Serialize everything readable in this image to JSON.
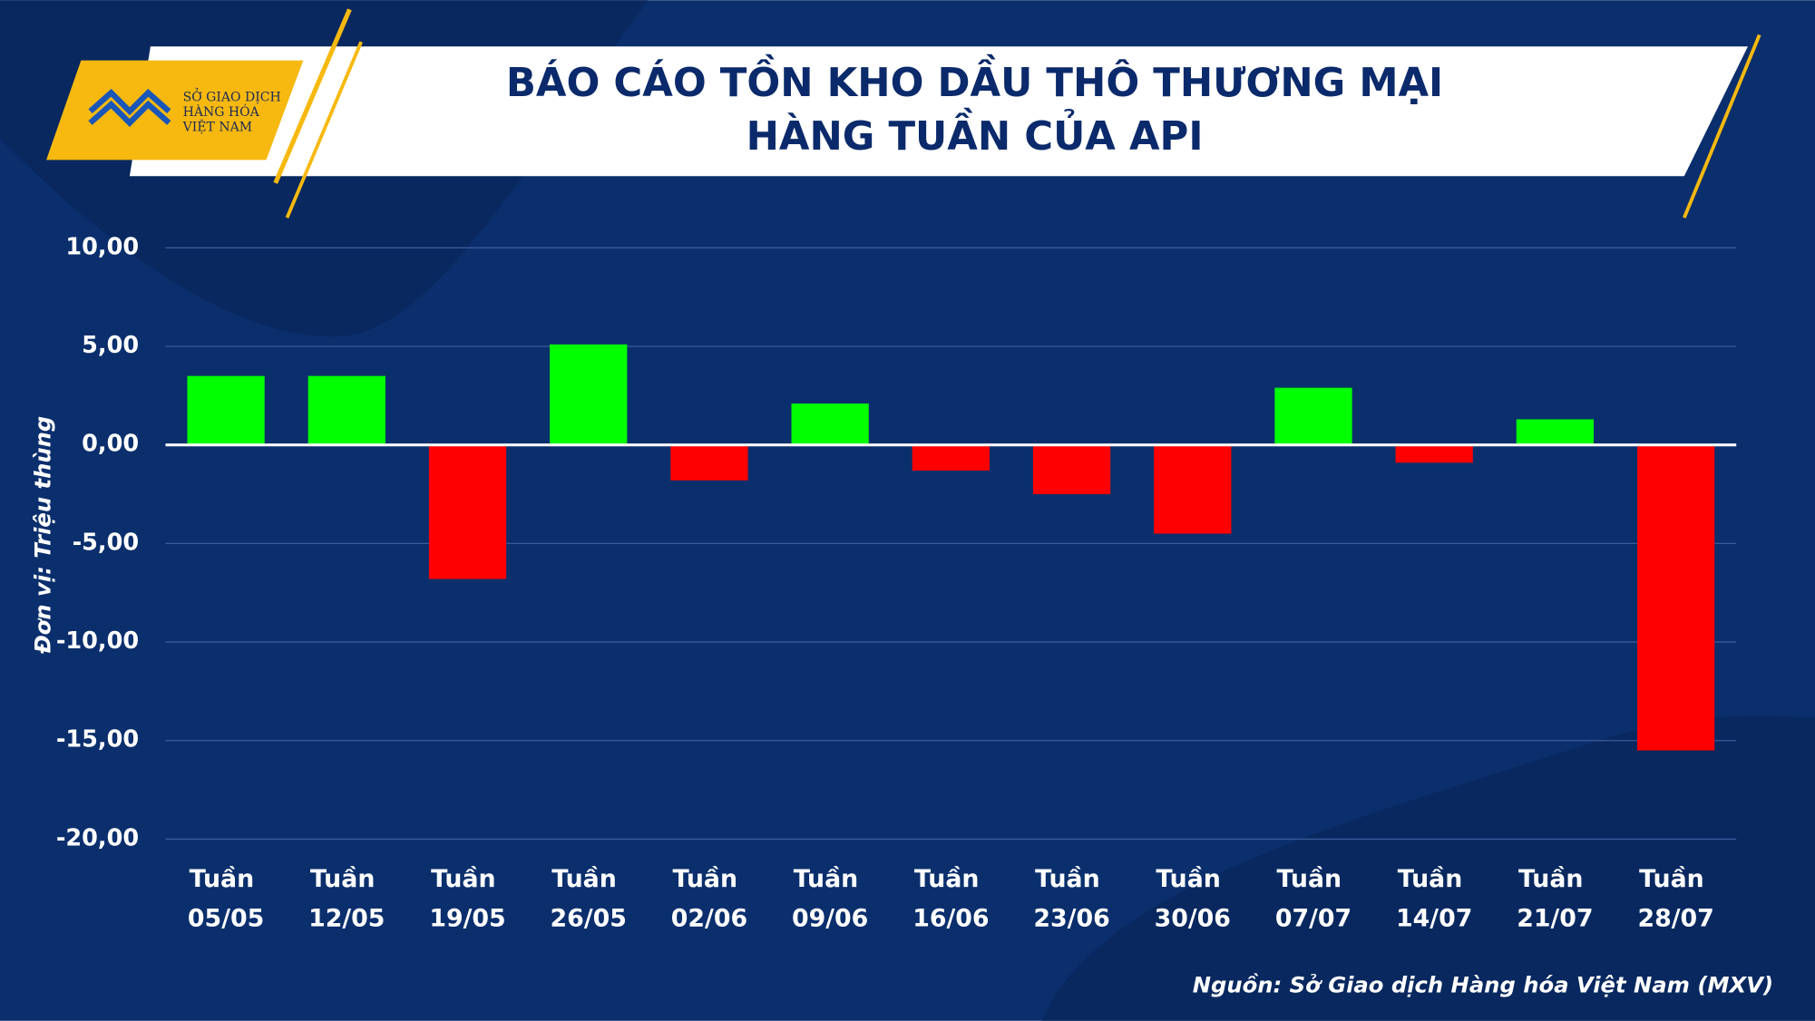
{
  "logo": {
    "lines": [
      "SỞ GIAO DỊCH",
      "HÀNG HÓA",
      "VIỆT NAM"
    ]
  },
  "chart_data": {
    "type": "bar",
    "title_lines": [
      "BÁO CÁO TỒN KHO DẦU THÔ THƯƠNG MẠI",
      "HÀNG TUẦN CỦA API"
    ],
    "y_label": "Đơn vị: Triệu thùng",
    "source": "Nguồn: Sở Giao dịch Hàng hóa Việt Nam (MXV)",
    "categories": [
      "Tuần 05/05",
      "Tuần 12/05",
      "Tuần 19/05",
      "Tuần 26/05",
      "Tuần 02/06",
      "Tuần 09/06",
      "Tuần 16/06",
      "Tuần 23/06",
      "Tuần 30/06",
      "Tuần 07/07",
      "Tuần 14/07",
      "Tuần 21/07",
      "Tuần 28/07"
    ],
    "values": [
      3.5,
      3.5,
      -6.8,
      5.1,
      -1.8,
      2.1,
      -1.3,
      -2.5,
      -4.5,
      2.9,
      -0.9,
      1.3,
      -15.5
    ],
    "color_positive": "#00ff00",
    "color_negative": "#ff0000",
    "ylim": [
      -20,
      10
    ],
    "yticks": [
      {
        "value": -20,
        "label": "-20,00"
      },
      {
        "value": -15,
        "label": "-15,00"
      },
      {
        "value": -10,
        "label": "-10,00"
      },
      {
        "value": -5,
        "label": "-5,00"
      },
      {
        "value": 0,
        "label": "0,00"
      },
      {
        "value": 5,
        "label": "5,00"
      },
      {
        "value": 10,
        "label": "10,00"
      }
    ],
    "grid": true
  }
}
